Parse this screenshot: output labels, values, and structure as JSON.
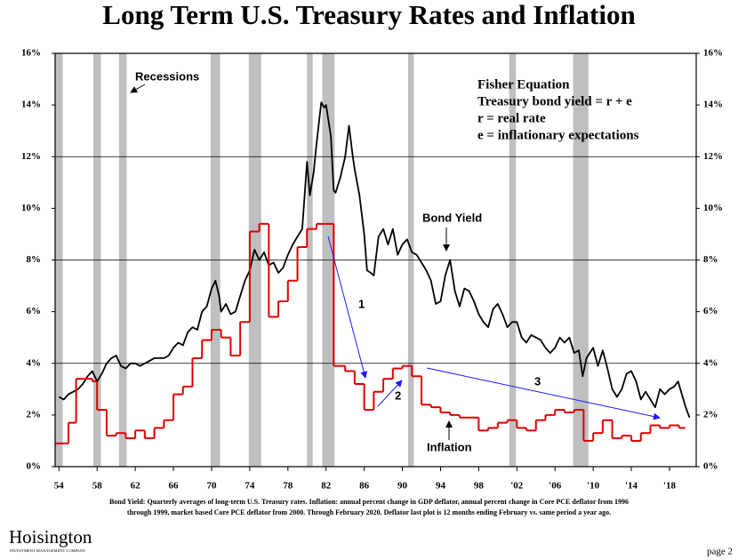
{
  "chart_data": {
    "type": "line",
    "title": "Long Term U.S. Treasury Rates and Inflation",
    "xlim": [
      1953.6,
      2020.8
    ],
    "xticks": [
      {
        "value": 1954,
        "label": "54"
      },
      {
        "value": 1958,
        "label": "58"
      },
      {
        "value": 1962,
        "label": "62"
      },
      {
        "value": 1966,
        "label": "66"
      },
      {
        "value": 1970,
        "label": "70"
      },
      {
        "value": 1974,
        "label": "74"
      },
      {
        "value": 1978,
        "label": "78"
      },
      {
        "value": 1982,
        "label": "82"
      },
      {
        "value": 1986,
        "label": "86"
      },
      {
        "value": 1990,
        "label": "90"
      },
      {
        "value": 1994,
        "label": "94"
      },
      {
        "value": 1998,
        "label": "98"
      },
      {
        "value": 2002,
        "label": "'02"
      },
      {
        "value": 2006,
        "label": "'06"
      },
      {
        "value": 2010,
        "label": "'10"
      },
      {
        "value": 2014,
        "label": "'14"
      },
      {
        "value": 2018,
        "label": "'18"
      }
    ],
    "ylim": [
      0,
      16
    ],
    "yticks": [
      {
        "value": 0,
        "label": "0%"
      },
      {
        "value": 2,
        "label": "2%"
      },
      {
        "value": 4,
        "label": "4%"
      },
      {
        "value": 6,
        "label": "6%"
      },
      {
        "value": 8,
        "label": "8%"
      },
      {
        "value": 10,
        "label": "10%"
      },
      {
        "value": 12,
        "label": "12%"
      },
      {
        "value": 14,
        "label": "14%"
      },
      {
        "value": 16,
        "label": "16%"
      }
    ],
    "grid_values": [
      4,
      8,
      12
    ],
    "recessions": {
      "label": "Recessions",
      "color": "#bfbfbf",
      "ranges": [
        [
          1953.6,
          1954.4
        ],
        [
          1957.6,
          1958.4
        ],
        [
          1960.3,
          1961.1
        ],
        [
          1969.9,
          1970.9
        ],
        [
          1973.9,
          1975.2
        ],
        [
          1980.0,
          1980.6
        ],
        [
          1981.6,
          1982.9
        ],
        [
          1990.6,
          1991.2
        ],
        [
          2001.2,
          2001.9
        ],
        [
          2007.9,
          2009.5
        ]
      ]
    },
    "series": [
      {
        "name": "Bond Yield",
        "color": "#000000",
        "x": [
          1954,
          1954.5,
          1955,
          1955.5,
          1956,
          1956.5,
          1957,
          1957.5,
          1958,
          1958.5,
          1959,
          1959.5,
          1960,
          1960.5,
          1961,
          1961.5,
          1962,
          1962.5,
          1963,
          1964,
          1965,
          1965.5,
          1966,
          1966.5,
          1967,
          1967.5,
          1968,
          1968.5,
          1969,
          1969.5,
          1970,
          1970.4,
          1970.8,
          1971,
          1971.5,
          1972,
          1972.5,
          1973,
          1973.5,
          1974,
          1974.5,
          1975,
          1975.5,
          1976,
          1976.5,
          1977,
          1977.5,
          1978,
          1978.5,
          1979,
          1979.5,
          1980,
          1980.3,
          1980.7,
          1981,
          1981.5,
          1981.8,
          1982,
          1982.5,
          1982.8,
          1983,
          1983.5,
          1984,
          1984.4,
          1984.8,
          1985,
          1985.5,
          1986,
          1986.3,
          1986.7,
          1987,
          1987.5,
          1988,
          1988.5,
          1989,
          1989.5,
          1990,
          1990.5,
          1991,
          1991.5,
          1992,
          1992.5,
          1993,
          1993.5,
          1994,
          1994.5,
          1995,
          1995.5,
          1996,
          1996.5,
          1997,
          1997.5,
          1998,
          1998.5,
          1999,
          1999.5,
          2000,
          2000.5,
          2001,
          2001.5,
          2002,
          2002.5,
          2003,
          2003.5,
          2004,
          2004.5,
          2005,
          2005.5,
          2006,
          2006.5,
          2007,
          2007.5,
          2008,
          2008.5,
          2008.9,
          2009.3,
          2010,
          2010.5,
          2011,
          2011.5,
          2012,
          2012.5,
          2013,
          2013.5,
          2014,
          2014.5,
          2015,
          2015.5,
          2016,
          2016.5,
          2017,
          2017.5,
          2018,
          2018.5,
          2018.9,
          2019.3,
          2019.7,
          2020.1
        ],
        "values": [
          2.7,
          2.6,
          2.8,
          2.9,
          3.0,
          3.2,
          3.5,
          3.7,
          3.3,
          3.6,
          4.0,
          4.2,
          4.3,
          3.9,
          3.8,
          4.0,
          4.0,
          3.9,
          4.0,
          4.2,
          4.2,
          4.3,
          4.6,
          4.8,
          4.7,
          5.2,
          5.4,
          5.3,
          6.0,
          6.2,
          6.9,
          7.2,
          6.6,
          6.0,
          6.3,
          5.9,
          6.0,
          6.6,
          7.2,
          7.6,
          8.4,
          8.0,
          8.3,
          7.8,
          7.9,
          7.5,
          7.7,
          8.2,
          8.6,
          8.9,
          9.2,
          11.8,
          10.5,
          11.4,
          12.5,
          14.1,
          13.9,
          14.0,
          12.8,
          10.7,
          10.6,
          11.2,
          12.0,
          13.2,
          12.0,
          11.5,
          10.5,
          9.0,
          7.6,
          7.5,
          7.4,
          8.9,
          9.2,
          8.6,
          9.2,
          8.2,
          8.6,
          8.8,
          8.3,
          8.2,
          7.9,
          7.6,
          7.2,
          6.3,
          6.4,
          7.4,
          8.0,
          6.8,
          6.2,
          6.9,
          6.8,
          6.4,
          5.9,
          5.6,
          5.4,
          6.1,
          6.3,
          5.9,
          5.4,
          5.6,
          5.6,
          5.0,
          4.8,
          5.1,
          5.0,
          4.9,
          4.6,
          4.4,
          4.6,
          5.0,
          4.8,
          5.0,
          4.4,
          4.5,
          3.5,
          4.2,
          4.6,
          3.9,
          4.5,
          3.8,
          3.0,
          2.7,
          3.0,
          3.6,
          3.7,
          3.3,
          2.6,
          2.9,
          2.6,
          2.3,
          3.0,
          2.8,
          3.0,
          3.1,
          3.3,
          2.8,
          2.3,
          1.9
        ]
      },
      {
        "name": "Inflation",
        "color": "#e00000",
        "step": true,
        "x": [
          1953.6,
          1955,
          1955.8,
          1956.6,
          1957.5,
          1958,
          1959,
          1960,
          1961,
          1962,
          1963,
          1964,
          1965,
          1966,
          1967,
          1968,
          1969,
          1970,
          1971,
          1972,
          1973,
          1974,
          1975,
          1976,
          1977,
          1978,
          1979,
          1980,
          1981,
          1982.8,
          1984,
          1985,
          1986,
          1987,
          1988,
          1989,
          1990,
          1991,
          1992,
          1993,
          1994,
          1995,
          1996,
          1997,
          1998,
          1999,
          2000,
          2001,
          2002,
          2003,
          2004,
          2005,
          2006,
          2007,
          2008,
          2009,
          2010,
          2011,
          2012,
          2013,
          2014,
          2015,
          2016,
          2017,
          2018,
          2019
        ],
        "values": [
          0.9,
          1.7,
          3.4,
          3.4,
          3.3,
          2.2,
          1.2,
          1.3,
          1.1,
          1.4,
          1.1,
          1.5,
          1.8,
          2.8,
          3.1,
          4.2,
          4.9,
          5.3,
          5.0,
          4.3,
          5.6,
          9.1,
          9.4,
          5.8,
          6.4,
          7.2,
          8.5,
          9.2,
          9.4,
          3.9,
          3.7,
          3.2,
          2.2,
          2.9,
          3.4,
          3.8,
          3.9,
          3.5,
          2.4,
          2.3,
          2.1,
          2.0,
          1.9,
          1.9,
          1.4,
          1.5,
          1.7,
          1.8,
          1.5,
          1.4,
          1.8,
          2.0,
          2.2,
          2.1,
          2.2,
          1.0,
          1.3,
          1.8,
          1.1,
          1.2,
          1.0,
          1.3,
          1.6,
          1.5,
          1.6,
          1.5
        ]
      }
    ],
    "annotations": {
      "fisher": [
        "Fisher Equation",
        "Treasury bond yield = r + e",
        "r = real rate",
        "e = inflationary expectations"
      ],
      "arrows": [
        "1",
        "2",
        "3"
      ]
    },
    "footnote": [
      "Bond Yield: Quarterly averages of long-term U.S. Treasury rates. Inflation: annual percent change in GDP deflator, annual percent change in Core PCE deflator from 1996",
      "through 1999, market based Core PCE deflator from 2000.  Through February 2020. Deflator last plot is 12 months ending February vs. same period a year ago."
    ]
  },
  "logo": {
    "name": "Hoisington",
    "tagline": "INVESTMENT MANAGEMENT COMPANY"
  },
  "page": "page 2"
}
